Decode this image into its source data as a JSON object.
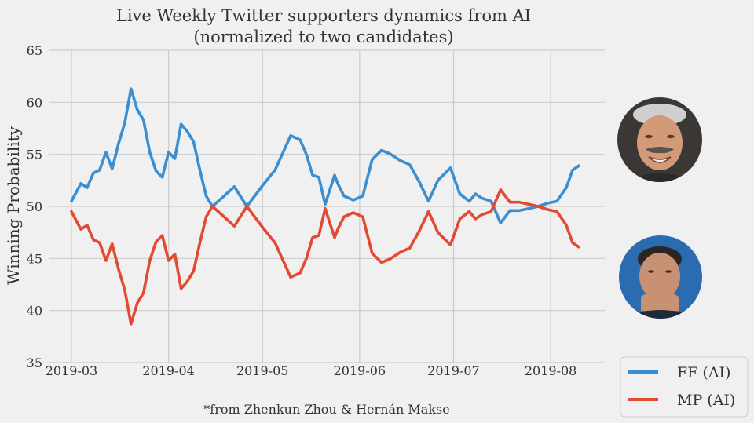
{
  "chart_data": {
    "type": "line",
    "title": "Live Weekly Twitter supporters dynamics from AI",
    "subtitle": "(normalized to two candidates)",
    "xlabel": "",
    "ylabel": "Winning Probability",
    "ylim": [
      35,
      65
    ],
    "yticks": [
      "35",
      "40",
      "45",
      "50",
      "55",
      "60",
      "65"
    ],
    "xticks": [
      "2019-03",
      "2019-04",
      "2019-05",
      "2019-06",
      "2019-07",
      "2019-08"
    ],
    "grid": true,
    "legend_position": "bottom-right",
    "x": [
      "2019-03-01",
      "2019-03-04",
      "2019-03-06",
      "2019-03-08",
      "2019-03-10",
      "2019-03-12",
      "2019-03-14",
      "2019-03-16",
      "2019-03-18",
      "2019-03-20",
      "2019-03-22",
      "2019-03-24",
      "2019-03-26",
      "2019-03-28",
      "2019-03-30",
      "2019-04-01",
      "2019-04-03",
      "2019-04-05",
      "2019-04-07",
      "2019-04-09",
      "2019-04-11",
      "2019-04-13",
      "2019-04-15",
      "2019-04-18",
      "2019-04-22",
      "2019-04-26",
      "2019-04-29",
      "2019-05-01",
      "2019-05-05",
      "2019-05-10",
      "2019-05-13",
      "2019-05-15",
      "2019-05-17",
      "2019-05-19",
      "2019-05-21",
      "2019-05-24",
      "2019-05-25",
      "2019-05-27",
      "2019-05-30",
      "2019-06-02",
      "2019-06-05",
      "2019-06-08",
      "2019-06-11",
      "2019-06-14",
      "2019-06-17",
      "2019-06-20",
      "2019-06-23",
      "2019-06-26",
      "2019-06-30",
      "2019-07-03",
      "2019-07-06",
      "2019-07-08",
      "2019-07-10",
      "2019-07-13",
      "2019-07-16",
      "2019-07-19",
      "2019-07-22",
      "2019-07-25",
      "2019-07-28",
      "2019-07-31",
      "2019-08-03",
      "2019-08-06",
      "2019-08-08",
      "2019-08-10"
    ],
    "series": [
      {
        "name": "FF (AI)",
        "color": "#3b8fd0",
        "values": [
          50.5,
          52.2,
          51.8,
          53.2,
          53.5,
          55.2,
          53.6,
          56.0,
          58.0,
          61.3,
          59.3,
          58.3,
          55.2,
          53.4,
          52.8,
          55.2,
          54.6,
          57.9,
          57.2,
          56.2,
          53.5,
          51.0,
          50.0,
          50.8,
          51.9,
          50.0,
          51.2,
          52.0,
          53.5,
          56.8,
          56.4,
          55.0,
          53.0,
          52.8,
          50.2,
          53.0,
          52.2,
          51.0,
          50.6,
          51.0,
          54.5,
          55.4,
          55.0,
          54.4,
          54.0,
          52.4,
          50.5,
          52.5,
          53.7,
          51.2,
          50.5,
          51.2,
          50.8,
          50.5,
          48.4,
          49.6,
          49.6,
          49.8,
          50.0,
          50.3,
          50.5,
          51.8,
          53.5,
          53.9
        ],
        "color_name": "blue"
      },
      {
        "name": "MP (AI)",
        "color": "#e24a33",
        "values": [
          49.5,
          47.8,
          48.2,
          46.8,
          46.5,
          44.8,
          46.4,
          44.0,
          42.0,
          38.7,
          40.7,
          41.7,
          44.8,
          46.6,
          47.2,
          44.8,
          45.4,
          42.1,
          42.8,
          43.8,
          46.5,
          49.0,
          50.0,
          49.2,
          48.1,
          50.0,
          48.8,
          48.0,
          46.5,
          43.2,
          43.6,
          45.0,
          47.0,
          47.2,
          49.8,
          47.0,
          47.8,
          49.0,
          49.4,
          49.0,
          45.5,
          44.6,
          45.0,
          45.6,
          46.0,
          47.6,
          49.5,
          47.5,
          46.3,
          48.8,
          49.5,
          48.8,
          49.2,
          49.5,
          51.6,
          50.4,
          50.4,
          50.2,
          50.0,
          49.7,
          49.5,
          48.2,
          46.5,
          46.1
        ]
      }
    ]
  },
  "credit": "*from Zhenkun Zhou & Hernán Makse",
  "legend": {
    "items": [
      "FF (AI)",
      "MP (AI)"
    ]
  },
  "avatars": [
    {
      "icon": "candidate-ff-portrait-icon"
    },
    {
      "icon": "candidate-mp-portrait-icon"
    }
  ]
}
